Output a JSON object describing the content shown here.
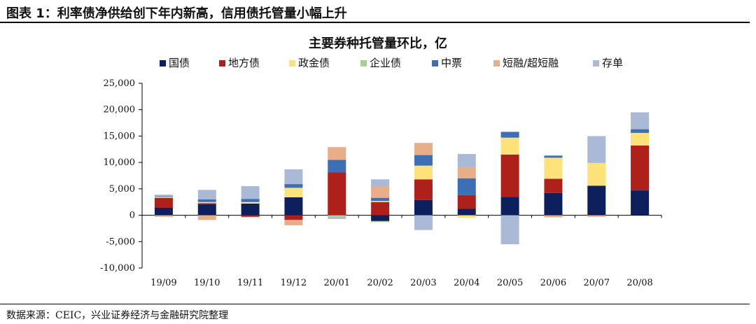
{
  "header": {
    "title": "图表 1：利率债净供给创下年内新高，信用债托管量小幅上升"
  },
  "footer": {
    "source": "数据来源：CEIC，兴业证券经济与金融研究院整理"
  },
  "chart_data": {
    "type": "bar",
    "stacked": true,
    "title": "主要券种托管量环比，亿",
    "xlabel": "",
    "ylabel": "",
    "ylim": [
      -10000,
      25000
    ],
    "yticks": [
      25000,
      20000,
      15000,
      10000,
      5000,
      0,
      -5000,
      -10000
    ],
    "ytick_labels": [
      "25,000",
      "20,000",
      "15,000",
      "10,000",
      "5,000",
      "0",
      "-5,000",
      "-10,000"
    ],
    "grid": false,
    "legend_position": "top",
    "categories": [
      "19/09",
      "19/10",
      "19/11",
      "19/12",
      "20/01",
      "20/02",
      "20/03",
      "20/04",
      "20/05",
      "20/06",
      "20/07",
      "20/08"
    ],
    "series": [
      {
        "name": "国债",
        "color": "#0d1f5c",
        "values": [
          1400,
          2100,
          2200,
          3400,
          0,
          -1100,
          2900,
          1200,
          3500,
          4200,
          5600,
          4700
        ]
      },
      {
        "name": "地方债",
        "color": "#b0201a",
        "values": [
          1900,
          200,
          -300,
          -900,
          8100,
          2500,
          3900,
          2600,
          8000,
          2700,
          0,
          8500
        ]
      },
      {
        "name": "政金债",
        "color": "#fde27a",
        "values": [
          100,
          200,
          300,
          1800,
          0,
          200,
          2600,
          -500,
          3200,
          4000,
          4300,
          2400
        ]
      },
      {
        "name": "企业债",
        "color": "#a9d18e",
        "values": [
          100,
          0,
          0,
          0,
          -300,
          -200,
          0,
          0,
          0,
          0,
          0,
          0
        ]
      },
      {
        "name": "中票",
        "color": "#3d6fb6",
        "values": [
          100,
          500,
          600,
          700,
          2400,
          600,
          2000,
          3200,
          1100,
          400,
          0,
          700
        ]
      },
      {
        "name": "短融/超短融",
        "color": "#e8ae88",
        "values": [
          -300,
          -900,
          -100,
          -1000,
          2400,
          2200,
          2300,
          2100,
          0,
          -400,
          -300,
          0
        ]
      },
      {
        "name": "存单",
        "color": "#aab9d6",
        "values": [
          300,
          1800,
          2400,
          2800,
          -400,
          1300,
          -2800,
          2500,
          -5500,
          0,
          5100,
          3200
        ]
      }
    ]
  }
}
